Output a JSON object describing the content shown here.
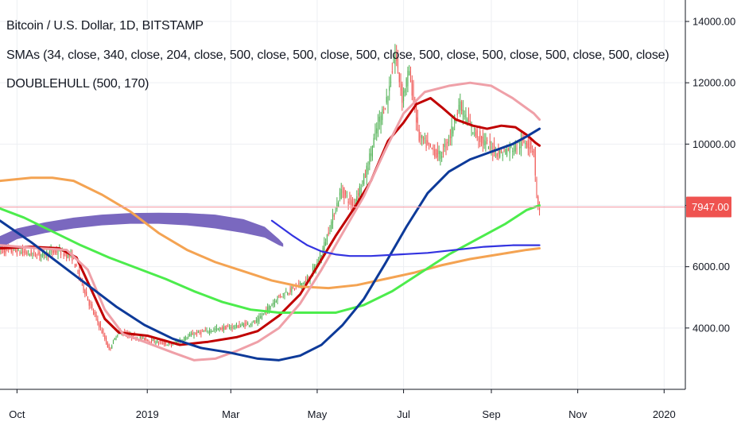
{
  "header": {
    "title": "Bitcoin / U.S. Dollar, 1D, BITSTAMP",
    "sma_legend": "SMAs (34, close, 340, close, 204, close, 500, close, 500, close, 500, close, 500, close, 500, close, 500, close, 500, close)",
    "hull_legend": "DOUBLEHULL (500, 170)"
  },
  "colors": {
    "grid": "#edeff3",
    "axis": "#131722",
    "candle_up": "#4caf50",
    "candle_down": "#ef5350",
    "price_line": "#f3a0ab",
    "price_tag": "#ef5350",
    "sma34": "#c00000",
    "sma340": "#f4a352",
    "sma204": "#4cec4c",
    "sma_pink": "#efa0a8",
    "sma_navy": "#0d3a99",
    "hull": "#3333e0",
    "hull_band": "#6b58b8"
  },
  "chart_data": {
    "type": "candlestick",
    "symbol": "Bitcoin / U.S. Dollar",
    "interval": "1D",
    "exchange": "BITSTAMP",
    "x_tick_labels": [
      "Oct",
      "2019",
      "Mar",
      "May",
      "Jul",
      "Sep",
      "Nov",
      "2020"
    ],
    "x_tick_days": [
      30,
      122,
      181,
      242,
      303,
      365,
      426,
      487
    ],
    "y_tick_labels": [
      "4000.00",
      "6000.00",
      "8000.00",
      "10000.00",
      "12000.00",
      "14000.00"
    ],
    "y_tick_values": [
      4000,
      6000,
      8000,
      10000,
      12000,
      14000
    ],
    "ylim": [
      2000,
      14700
    ],
    "xlim_days": [
      18,
      502
    ],
    "last_price": 7947,
    "last_price_label": "7947.00",
    "grid": true,
    "price_path": [
      [
        18,
        6550
      ],
      [
        30,
        6500
      ],
      [
        45,
        6400
      ],
      [
        60,
        6500
      ],
      [
        70,
        6300
      ],
      [
        82,
        4800
      ],
      [
        88,
        4200
      ],
      [
        96,
        3300
      ],
      [
        103,
        3900
      ],
      [
        110,
        3750
      ],
      [
        125,
        3600
      ],
      [
        140,
        3450
      ],
      [
        155,
        3800
      ],
      [
        170,
        3950
      ],
      [
        185,
        4050
      ],
      [
        200,
        4200
      ],
      [
        215,
        5000
      ],
      [
        230,
        5400
      ],
      [
        237,
        5600
      ],
      [
        245,
        6300
      ],
      [
        252,
        7300
      ],
      [
        260,
        8500
      ],
      [
        268,
        8000
      ],
      [
        277,
        9000
      ],
      [
        285,
        10500
      ],
      [
        293,
        11600
      ],
      [
        298,
        13000
      ],
      [
        303,
        11500
      ],
      [
        308,
        12400
      ],
      [
        315,
        10200
      ],
      [
        322,
        9900
      ],
      [
        330,
        9600
      ],
      [
        337,
        10300
      ],
      [
        343,
        11300
      ],
      [
        352,
        10500
      ],
      [
        362,
        10000
      ],
      [
        372,
        9700
      ],
      [
        382,
        9900
      ],
      [
        390,
        10100
      ],
      [
        396,
        9800
      ],
      [
        398,
        8200
      ],
      [
        399,
        7947
      ]
    ],
    "series": [
      {
        "name": "SMA 34",
        "color_key": "sma34",
        "width": 3,
        "points": [
          [
            18,
            6600
          ],
          [
            40,
            6650
          ],
          [
            60,
            6600
          ],
          [
            72,
            6300
          ],
          [
            82,
            5300
          ],
          [
            92,
            4300
          ],
          [
            102,
            3850
          ],
          [
            122,
            3750
          ],
          [
            145,
            3450
          ],
          [
            165,
            3550
          ],
          [
            185,
            3700
          ],
          [
            200,
            3900
          ],
          [
            215,
            4400
          ],
          [
            230,
            5100
          ],
          [
            242,
            6000
          ],
          [
            255,
            7000
          ],
          [
            268,
            7900
          ],
          [
            280,
            8800
          ],
          [
            292,
            10100
          ],
          [
            303,
            10700
          ],
          [
            312,
            11300
          ],
          [
            322,
            11500
          ],
          [
            330,
            11200
          ],
          [
            340,
            10800
          ],
          [
            352,
            10600
          ],
          [
            362,
            10500
          ],
          [
            372,
            10600
          ],
          [
            382,
            10550
          ],
          [
            390,
            10300
          ],
          [
            396,
            10050
          ],
          [
            399,
            9950
          ]
        ]
      },
      {
        "name": "SMA 340",
        "color_key": "sma340",
        "width": 3,
        "points": [
          [
            18,
            8800
          ],
          [
            40,
            8900
          ],
          [
            55,
            8900
          ],
          [
            70,
            8800
          ],
          [
            90,
            8350
          ],
          [
            110,
            7800
          ],
          [
            130,
            7100
          ],
          [
            150,
            6550
          ],
          [
            170,
            6150
          ],
          [
            190,
            5850
          ],
          [
            210,
            5550
          ],
          [
            230,
            5350
          ],
          [
            250,
            5300
          ],
          [
            270,
            5400
          ],
          [
            290,
            5600
          ],
          [
            310,
            5800
          ],
          [
            330,
            6050
          ],
          [
            350,
            6250
          ],
          [
            370,
            6400
          ],
          [
            390,
            6550
          ],
          [
            399,
            6600
          ]
        ]
      },
      {
        "name": "SMA 204",
        "color_key": "sma204",
        "width": 3,
        "points": [
          [
            18,
            7900
          ],
          [
            35,
            7600
          ],
          [
            55,
            7150
          ],
          [
            75,
            6700
          ],
          [
            95,
            6300
          ],
          [
            115,
            5950
          ],
          [
            135,
            5600
          ],
          [
            155,
            5200
          ],
          [
            175,
            4850
          ],
          [
            195,
            4600
          ],
          [
            215,
            4500
          ],
          [
            235,
            4500
          ],
          [
            255,
            4500
          ],
          [
            275,
            4750
          ],
          [
            295,
            5200
          ],
          [
            315,
            5800
          ],
          [
            335,
            6400
          ],
          [
            355,
            6900
          ],
          [
            375,
            7400
          ],
          [
            390,
            7850
          ],
          [
            399,
            8000
          ]
        ]
      },
      {
        "name": "SMA pink",
        "color_key": "sma_pink",
        "width": 3,
        "points": [
          [
            18,
            6700
          ],
          [
            45,
            6600
          ],
          [
            65,
            6550
          ],
          [
            80,
            5900
          ],
          [
            92,
            4600
          ],
          [
            105,
            3800
          ],
          [
            120,
            3550
          ],
          [
            140,
            3200
          ],
          [
            155,
            2950
          ],
          [
            170,
            3000
          ],
          [
            185,
            3250
          ],
          [
            200,
            3550
          ],
          [
            215,
            4000
          ],
          [
            230,
            4800
          ],
          [
            245,
            5900
          ],
          [
            260,
            7100
          ],
          [
            275,
            8300
          ],
          [
            290,
            9800
          ],
          [
            303,
            11000
          ],
          [
            318,
            11700
          ],
          [
            335,
            11900
          ],
          [
            350,
            12000
          ],
          [
            365,
            11900
          ],
          [
            380,
            11500
          ],
          [
            395,
            11000
          ],
          [
            399,
            10800
          ]
        ]
      },
      {
        "name": "SMA navy",
        "color_key": "sma_navy",
        "width": 3,
        "points": [
          [
            18,
            7500
          ],
          [
            40,
            6800
          ],
          [
            60,
            6100
          ],
          [
            80,
            5400
          ],
          [
            100,
            4700
          ],
          [
            120,
            4100
          ],
          [
            140,
            3650
          ],
          [
            160,
            3350
          ],
          [
            180,
            3200
          ],
          [
            200,
            3000
          ],
          [
            215,
            2950
          ],
          [
            230,
            3100
          ],
          [
            245,
            3450
          ],
          [
            260,
            4100
          ],
          [
            275,
            4950
          ],
          [
            290,
            6100
          ],
          [
            305,
            7300
          ],
          [
            320,
            8400
          ],
          [
            335,
            9100
          ],
          [
            350,
            9500
          ],
          [
            365,
            9750
          ],
          [
            380,
            10000
          ],
          [
            390,
            10250
          ],
          [
            399,
            10500
          ]
        ]
      },
      {
        "name": "DOUBLEHULL",
        "color_key": "hull",
        "width": 2.2,
        "points": [
          [
            210,
            7500
          ],
          [
            225,
            7000
          ],
          [
            235,
            6700
          ],
          [
            245,
            6500
          ],
          [
            255,
            6400
          ],
          [
            265,
            6350
          ],
          [
            280,
            6350
          ],
          [
            300,
            6400
          ],
          [
            320,
            6450
          ],
          [
            340,
            6550
          ],
          [
            360,
            6650
          ],
          [
            380,
            6700
          ],
          [
            399,
            6700
          ]
        ]
      }
    ],
    "hull_band": {
      "upper": [
        [
          18,
          7000
        ],
        [
          30,
          7250
        ],
        [
          50,
          7450
        ],
        [
          70,
          7600
        ],
        [
          90,
          7700
        ],
        [
          110,
          7750
        ],
        [
          130,
          7760
        ],
        [
          150,
          7750
        ],
        [
          170,
          7700
        ],
        [
          190,
          7550
        ],
        [
          205,
          7300
        ],
        [
          215,
          6900
        ],
        [
          218,
          6750
        ]
      ],
      "lower": [
        [
          18,
          6600
        ],
        [
          30,
          6900
        ],
        [
          50,
          7100
        ],
        [
          70,
          7250
        ],
        [
          90,
          7350
        ],
        [
          110,
          7400
        ],
        [
          130,
          7400
        ],
        [
          150,
          7350
        ],
        [
          170,
          7250
        ],
        [
          190,
          7100
        ],
        [
          205,
          6950
        ],
        [
          215,
          6700
        ],
        [
          218,
          6650
        ]
      ]
    }
  }
}
